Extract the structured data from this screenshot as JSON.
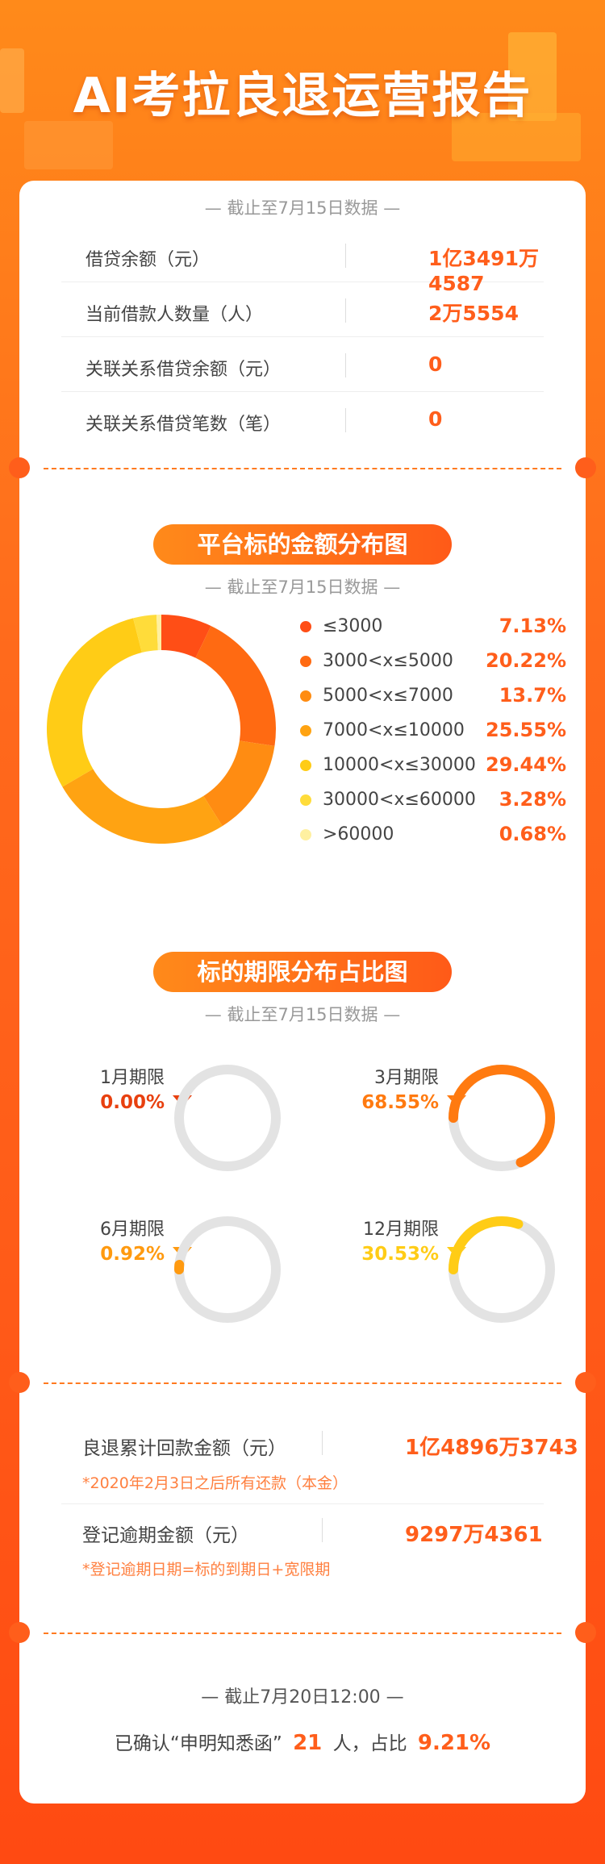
{
  "title": "AI考拉良退运营报告",
  "as_of": "— 截止至7月15日数据 —",
  "summary": [
    {
      "label": "借贷余额（元）",
      "value": "1亿3491万4587"
    },
    {
      "label": "当前借款人数量（人）",
      "value": "2万5554"
    },
    {
      "label": "关联关系借贷余额（元）",
      "value": "0"
    },
    {
      "label": "关联关系借贷笔数（笔）",
      "value": "0"
    }
  ],
  "amount_section": {
    "title": "平台标的金额分布图",
    "as_of": "— 截止至7月15日数据 —"
  },
  "term_section": {
    "title": "标的期限分布占比图",
    "as_of": "— 截止至7月15日数据 —"
  },
  "chart_data": [
    {
      "type": "pie",
      "categories": [
        "≤3000",
        "3000<x≤5000",
        "5000<x≤7000",
        "7000<x≤10000",
        "10000<x≤30000",
        "30000<x≤60000",
        ">60000"
      ],
      "values": [
        7.13,
        20.22,
        13.7,
        25.55,
        29.44,
        3.28,
        0.68
      ],
      "labels": [
        "7.13%",
        "20.22%",
        "13.7%",
        "25.55%",
        "29.44%",
        "3.28%",
        "0.68%"
      ],
      "colors": [
        "#ff4e16",
        "#ff6a12",
        "#ff8c12",
        "#ffa312",
        "#ffcc16",
        "#ffdc3a",
        "#fff0a0"
      ],
      "style": "donut"
    },
    {
      "type": "pie",
      "style": "radial-progress",
      "categories": [
        "1月期限",
        "3月期限",
        "6月期限",
        "12月期限"
      ],
      "values": [
        0.0,
        68.55,
        0.92,
        30.53
      ],
      "labels": [
        "0.00%",
        "68.55%",
        "0.92%",
        "30.53%"
      ],
      "colors": [
        "#e8400f",
        "#ff7a10",
        "#ff9a10",
        "#ffcc16"
      ]
    }
  ],
  "bottom": {
    "repay_label": "良退累计回款金额（元）",
    "repay_value": "1亿4896万3743",
    "repay_note": "*2020年2月3日之后所有还款（本金）",
    "overdue_label": "登记逾期金额（元）",
    "overdue_value": "9297万4361",
    "overdue_note": "*登记逾期日期=标的到期日+宽限期"
  },
  "footer": {
    "as_of": "— 截止7月20日12:00 —",
    "pre": "已确认“申明知悉函”",
    "count": "21",
    "mid": "人，占比",
    "pct": "9.21%"
  }
}
